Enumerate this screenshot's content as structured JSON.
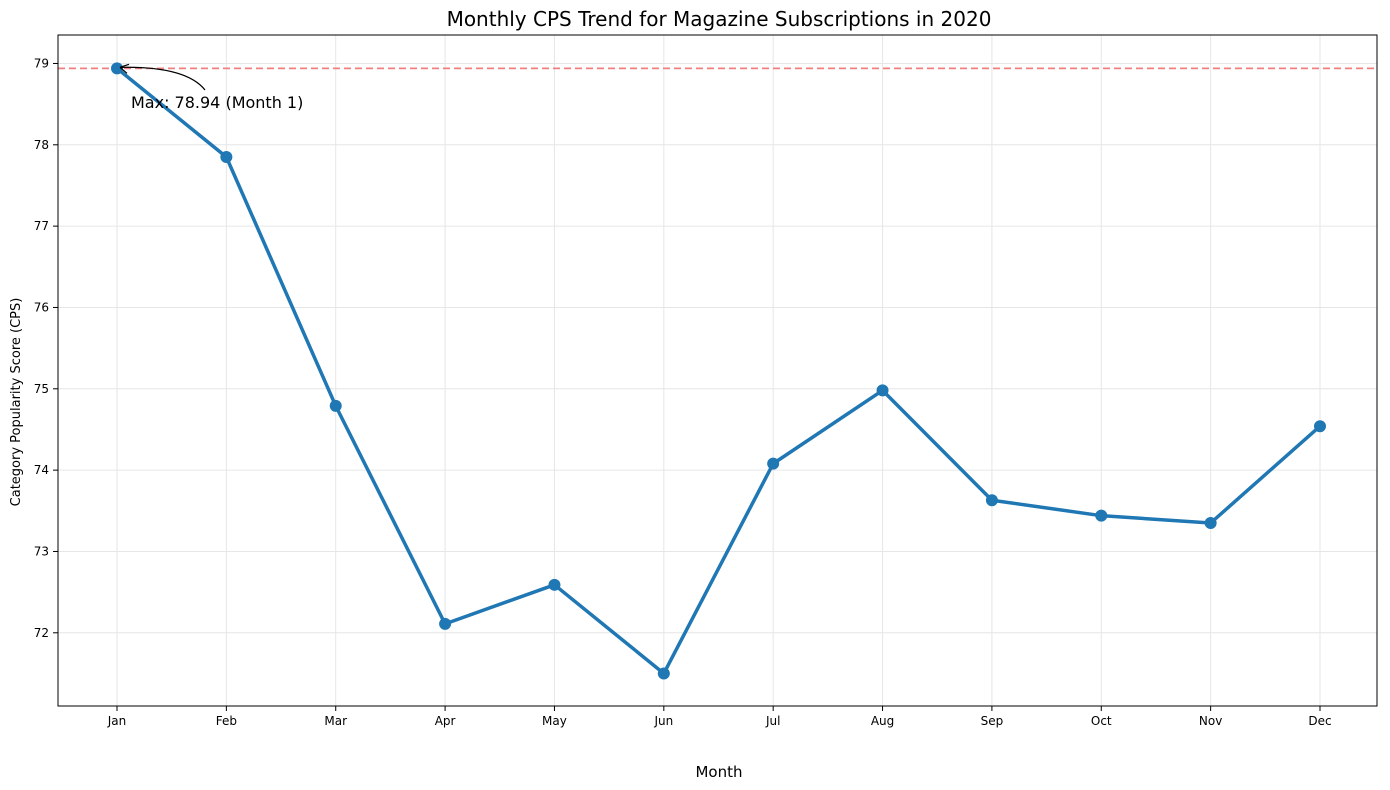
{
  "chart_data": {
    "type": "line",
    "title": "Monthly CPS Trend for Magazine Subscriptions in 2020",
    "xlabel": "Month",
    "ylabel": "Category Popularity Score (CPS)",
    "categories": [
      "Jan",
      "Feb",
      "Mar",
      "Apr",
      "May",
      "Jun",
      "Jul",
      "Aug",
      "Sep",
      "Oct",
      "Nov",
      "Dec"
    ],
    "series": [
      {
        "values": [
          78.94,
          77.85,
          74.79,
          72.11,
          72.59,
          71.5,
          74.08,
          74.98,
          73.63,
          73.44,
          73.35,
          74.54
        ]
      }
    ],
    "ylim": [
      71.1,
      79.35
    ],
    "yticks": [
      72,
      73,
      74,
      75,
      76,
      77,
      78,
      79
    ],
    "grid": true,
    "reference_line": {
      "value": 78.94,
      "style": "dashed",
      "color": "#f08080"
    },
    "annotation": {
      "text": "Max: 78.94 (Month 1)",
      "x_index": 0,
      "y": 78.94
    },
    "colors": {
      "series": "#1f77b4",
      "grid": "#e6e6e6",
      "reference": "#f08080"
    }
  }
}
